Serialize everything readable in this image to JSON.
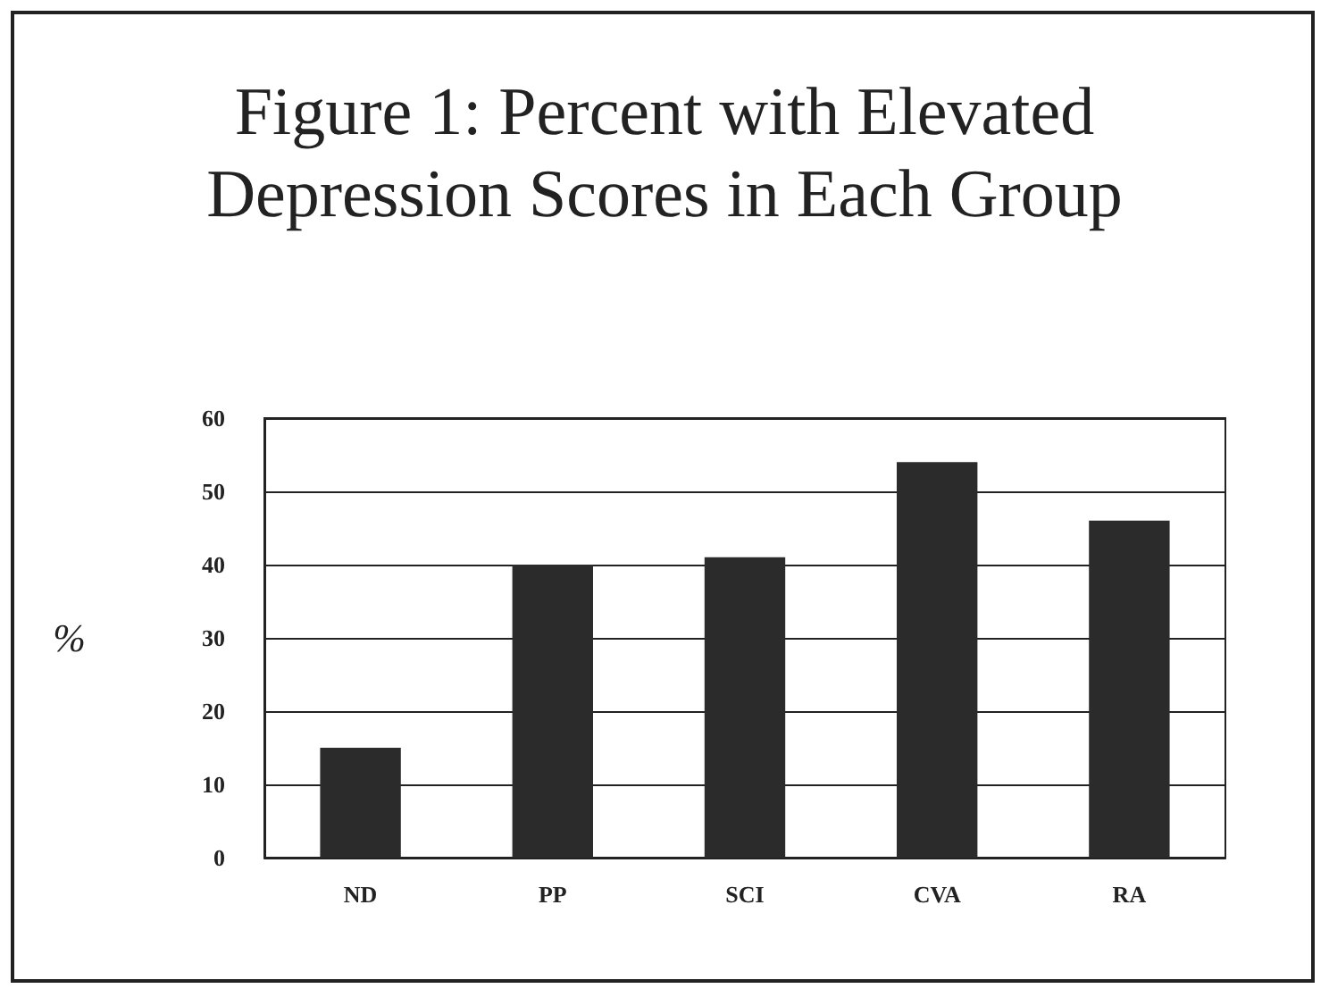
{
  "chart_data": {
    "type": "bar",
    "title": "Figure 1: Percent with Elevated Depression Scores in Each Group",
    "ylabel": "%",
    "categories": [
      "ND",
      "PP",
      "SCI",
      "CVA",
      "RA"
    ],
    "values": [
      15,
      40,
      41,
      54,
      46
    ],
    "color": "#2b2b2b",
    "ylim": [
      0,
      60
    ],
    "yticks": [
      0,
      10,
      20,
      30,
      40,
      50,
      60
    ],
    "grid": "y"
  }
}
